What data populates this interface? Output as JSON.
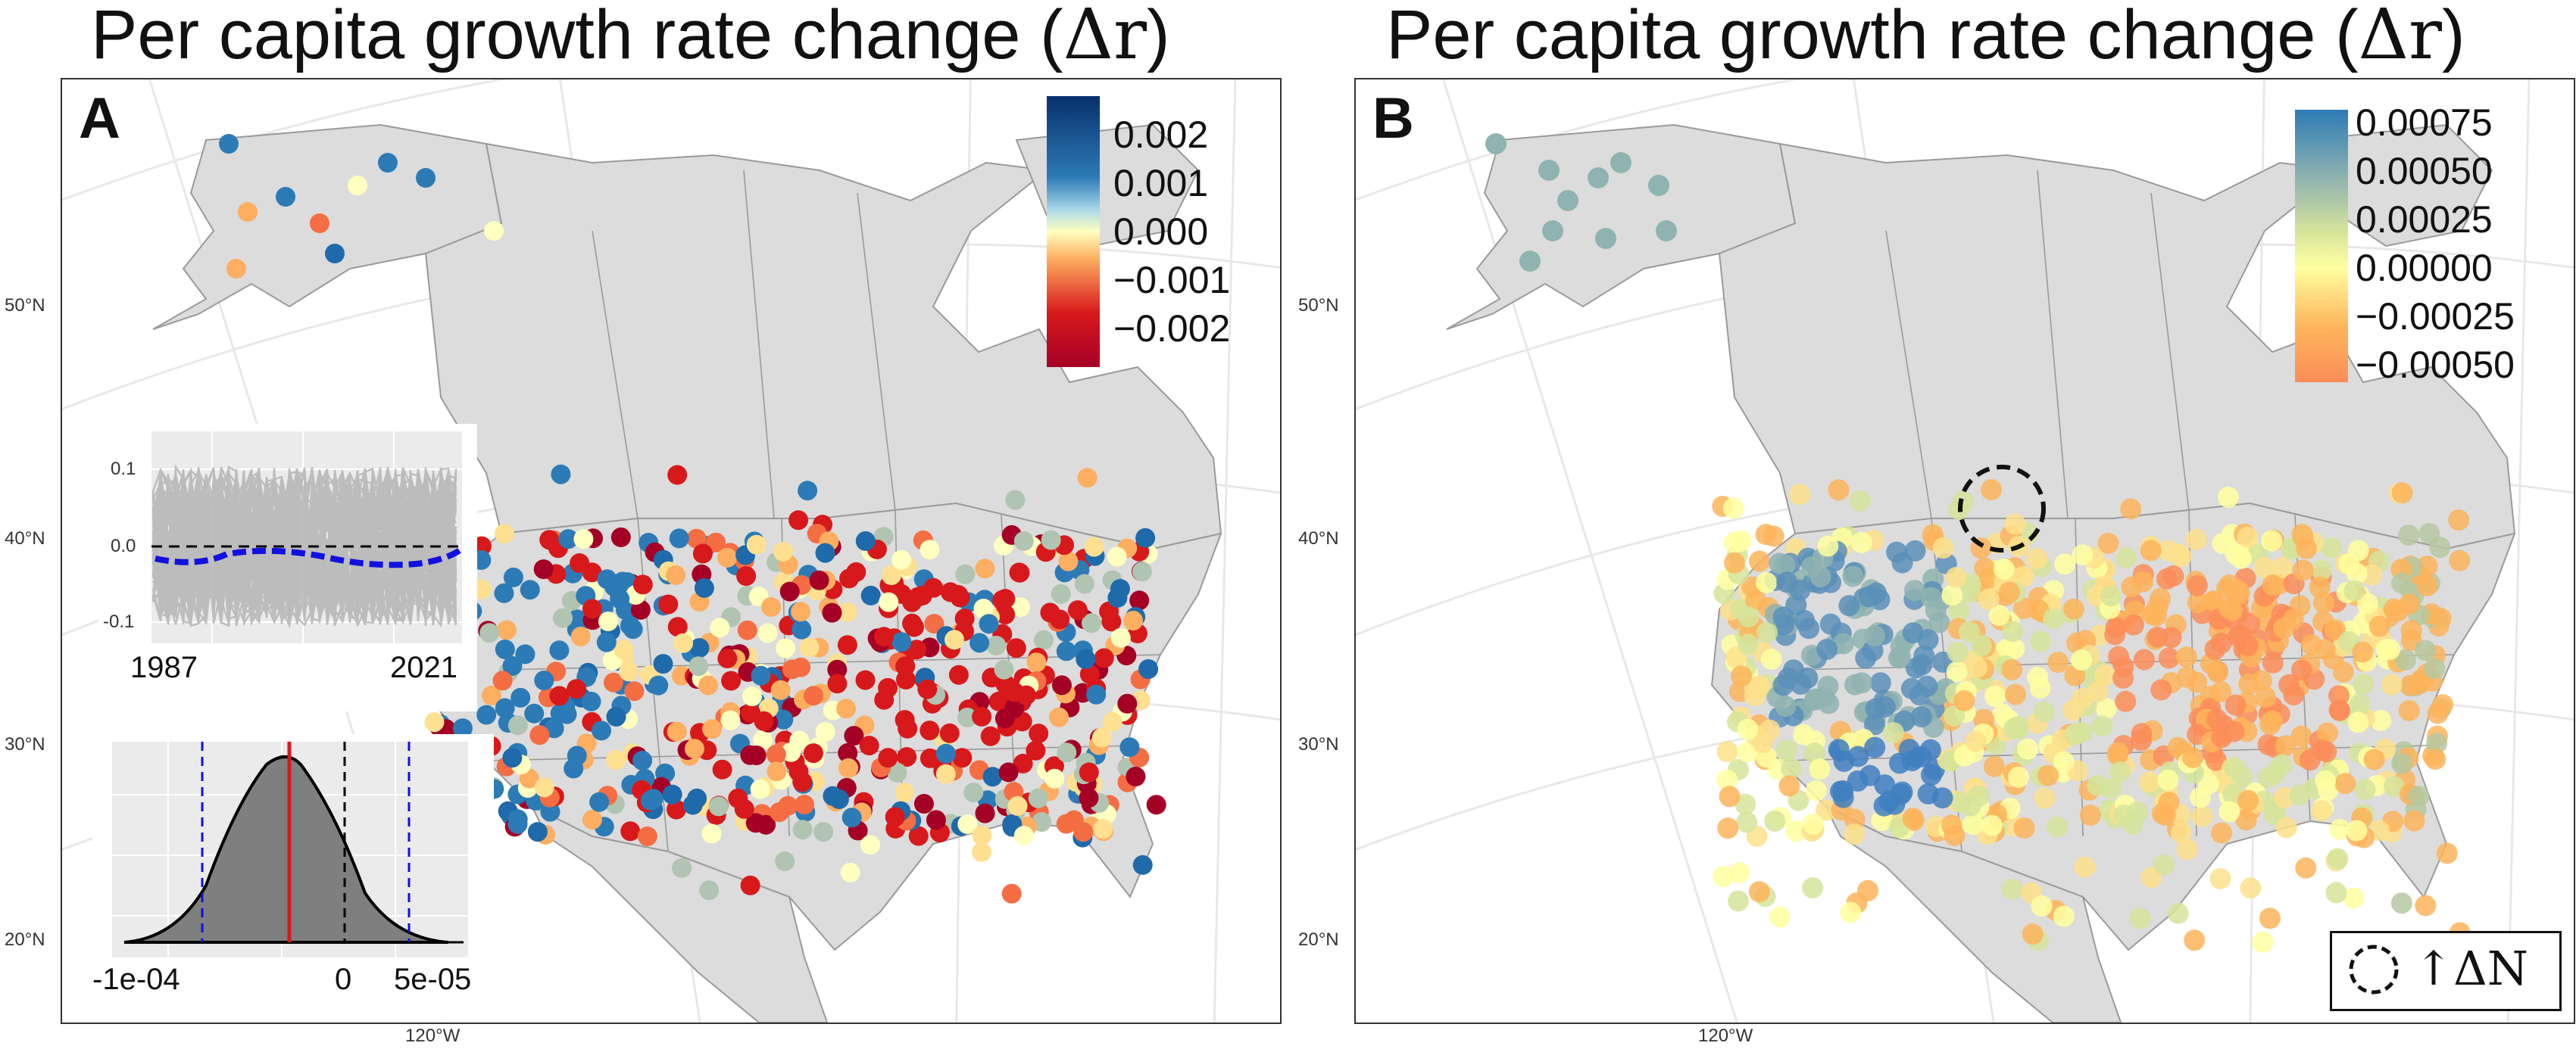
{
  "panels": [
    {
      "id": "A",
      "title_text": "Per capita growth rate change (",
      "title_math": "Δr",
      "title_close": ")",
      "letter": "A",
      "legend": {
        "labels": [
          "0.002",
          "0.001",
          "0.000",
          "−0.001",
          "−0.002"
        ],
        "colors": [
          "#08519c",
          "#2c7bb6",
          "#ffffbf",
          "#f46d43",
          "#a50026"
        ]
      },
      "lat_labels": [
        "50°N",
        "40°N",
        "30°N",
        "20°N"
      ],
      "lon_label": "120°W",
      "inset_timeseries": {
        "y_ticks": [
          "0.1",
          "0.0",
          "-0.1"
        ],
        "x_labels": [
          "1987",
          "2021"
        ]
      },
      "inset_density": {
        "x_ticks": [
          "-1e-04",
          "0",
          "5e-05"
        ]
      }
    },
    {
      "id": "B",
      "title_text": "Per capita growth rate change (",
      "title_math": "Δr",
      "title_close": ")",
      "letter": "B",
      "legend": {
        "labels": [
          "0.00075",
          "0.00050",
          "0.00025",
          "0.00000",
          "−0.00025",
          "−0.00050"
        ],
        "colors": [
          "#2c7bb6",
          "#8fb3b0",
          "#d6e49a",
          "#ffffa0",
          "#fdb45a",
          "#fc8d59"
        ]
      },
      "lat_labels": [
        "50°N",
        "40°N",
        "30°N",
        "20°N"
      ],
      "lon_label": "120°W",
      "annotation_legend": "↑ΔN"
    }
  ],
  "colors": {
    "land": "#dcdcdc",
    "border": "#9a9a9a",
    "graticule": "#e6e6e6",
    "frame": "#333333"
  }
}
